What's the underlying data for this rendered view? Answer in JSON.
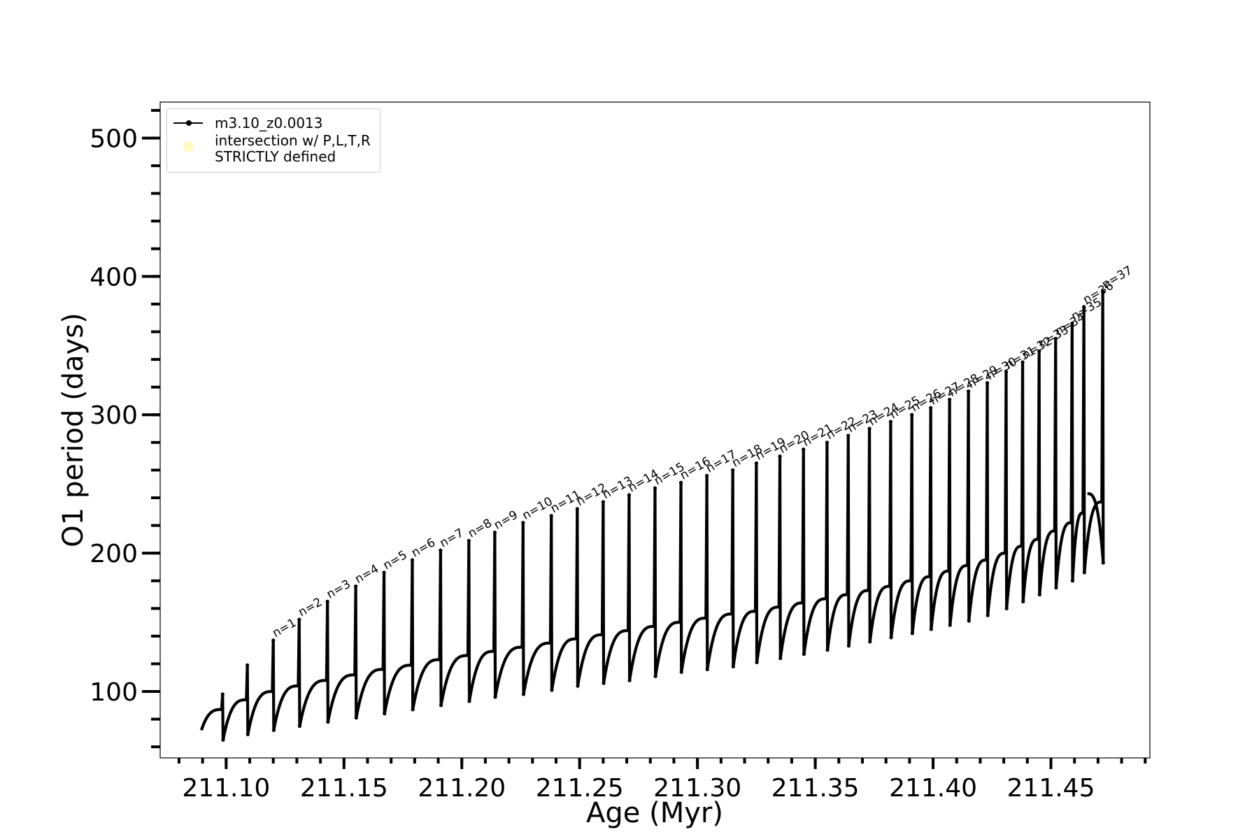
{
  "chart_data": {
    "type": "line",
    "title": "",
    "xlabel": "Age (Myr)",
    "ylabel": "O1 period (days)",
    "xlim": [
      211.072,
      211.492
    ],
    "ylim": [
      52,
      526
    ],
    "x_major_ticks": [
      211.1,
      211.15,
      211.2,
      211.25,
      211.3,
      211.35,
      211.4,
      211.45
    ],
    "x_tick_labels": [
      "211.10",
      "211.15",
      "211.20",
      "211.25",
      "211.30",
      "211.35",
      "211.40",
      "211.45"
    ],
    "x_minor_step": 0.01,
    "y_major_ticks": [
      100,
      200,
      300,
      400,
      500
    ],
    "y_tick_labels": [
      "100",
      "200",
      "300",
      "400",
      "500"
    ],
    "y_minor_step": 20,
    "grid": false,
    "legend_position": "top-left",
    "series": [
      {
        "name": "m3.10_z0.0013",
        "color": "#000000",
        "marker": "dot",
        "start": {
          "x": 211.0895,
          "y": 72
        },
        "end": {
          "x": 211.4655,
          "y": 243
        },
        "pulses": [
          {
            "x": 211.0985,
            "peak": 98,
            "pre": 87,
            "dip": 65
          },
          {
            "x": 211.109,
            "peak": 119,
            "pre": 94,
            "dip": 69
          },
          {
            "x": 211.12,
            "peak": 137,
            "pre": 100,
            "dip": 72
          },
          {
            "x": 211.131,
            "peak": 152,
            "pre": 104,
            "dip": 75
          },
          {
            "x": 211.143,
            "peak": 165,
            "pre": 108,
            "dip": 78
          },
          {
            "x": 211.155,
            "peak": 176,
            "pre": 112,
            "dip": 81
          },
          {
            "x": 211.167,
            "peak": 186,
            "pre": 116,
            "dip": 84
          },
          {
            "x": 211.179,
            "peak": 195,
            "pre": 119,
            "dip": 87
          },
          {
            "x": 211.191,
            "peak": 202,
            "pre": 123,
            "dip": 90
          },
          {
            "x": 211.203,
            "peak": 209,
            "pre": 126,
            "dip": 93
          },
          {
            "x": 211.214,
            "peak": 215,
            "pre": 129,
            "dip": 96
          },
          {
            "x": 211.226,
            "peak": 222,
            "pre": 132,
            "dip": 98
          },
          {
            "x": 211.238,
            "peak": 227,
            "pre": 135,
            "dip": 101
          },
          {
            "x": 211.249,
            "peak": 232,
            "pre": 138,
            "dip": 104
          },
          {
            "x": 211.26,
            "peak": 237,
            "pre": 141,
            "dip": 106
          },
          {
            "x": 211.271,
            "peak": 242,
            "pre": 144,
            "dip": 108
          },
          {
            "x": 211.282,
            "peak": 247,
            "pre": 147,
            "dip": 111
          },
          {
            "x": 211.293,
            "peak": 251,
            "pre": 150,
            "dip": 114
          },
          {
            "x": 211.304,
            "peak": 256,
            "pre": 153,
            "dip": 116
          },
          {
            "x": 211.315,
            "peak": 260,
            "pre": 156,
            "dip": 118
          },
          {
            "x": 211.325,
            "peak": 265,
            "pre": 158,
            "dip": 121
          },
          {
            "x": 211.335,
            "peak": 270,
            "pre": 161,
            "dip": 124
          },
          {
            "x": 211.345,
            "peak": 275,
            "pre": 164,
            "dip": 127
          },
          {
            "x": 211.355,
            "peak": 280,
            "pre": 167,
            "dip": 130
          },
          {
            "x": 211.364,
            "peak": 285,
            "pre": 170,
            "dip": 133
          },
          {
            "x": 211.373,
            "peak": 290,
            "pre": 173,
            "dip": 136
          },
          {
            "x": 211.382,
            "peak": 295,
            "pre": 176,
            "dip": 139
          },
          {
            "x": 211.391,
            "peak": 300,
            "pre": 180,
            "dip": 142
          },
          {
            "x": 211.399,
            "peak": 305,
            "pre": 183,
            "dip": 145
          },
          {
            "x": 211.407,
            "peak": 311,
            "pre": 187,
            "dip": 148
          },
          {
            "x": 211.415,
            "peak": 317,
            "pre": 191,
            "dip": 151
          },
          {
            "x": 211.423,
            "peak": 323,
            "pre": 195,
            "dip": 155
          },
          {
            "x": 211.431,
            "peak": 331,
            "pre": 200,
            "dip": 160
          },
          {
            "x": 211.438,
            "peak": 338,
            "pre": 205,
            "dip": 165
          },
          {
            "x": 211.445,
            "peak": 346,
            "pre": 210,
            "dip": 170
          },
          {
            "x": 211.452,
            "peak": 355,
            "pre": 216,
            "dip": 175
          },
          {
            "x": 211.459,
            "peak": 366,
            "pre": 222,
            "dip": 180
          },
          {
            "x": 211.464,
            "peak": 378,
            "pre": 229,
            "dip": 186
          },
          {
            "x": 211.472,
            "peak": 389,
            "pre": 237,
            "dip": 193
          }
        ]
      },
      {
        "name": "intersection w/ P,L,T,R\nSTRICTLY defined",
        "color": "#fffbc2",
        "marker": "circle",
        "points": []
      }
    ],
    "annotations": [
      {
        "text": "n=1",
        "x": 211.12,
        "y": 137
      },
      {
        "text": "n=2",
        "x": 211.131,
        "y": 152
      },
      {
        "text": "n=3",
        "x": 211.143,
        "y": 165
      },
      {
        "text": "n=4",
        "x": 211.155,
        "y": 176
      },
      {
        "text": "n=5",
        "x": 211.167,
        "y": 186
      },
      {
        "text": "n=6",
        "x": 211.179,
        "y": 195
      },
      {
        "text": "n=7",
        "x": 211.191,
        "y": 202
      },
      {
        "text": "n=8",
        "x": 211.203,
        "y": 209
      },
      {
        "text": "n=9",
        "x": 211.214,
        "y": 215
      },
      {
        "text": "n=10",
        "x": 211.226,
        "y": 222
      },
      {
        "text": "n=11",
        "x": 211.238,
        "y": 227
      },
      {
        "text": "n=12",
        "x": 211.249,
        "y": 232
      },
      {
        "text": "n=13",
        "x": 211.26,
        "y": 237
      },
      {
        "text": "n=14",
        "x": 211.271,
        "y": 242
      },
      {
        "text": "n=15",
        "x": 211.282,
        "y": 247
      },
      {
        "text": "n=16",
        "x": 211.293,
        "y": 251
      },
      {
        "text": "n=17",
        "x": 211.304,
        "y": 256
      },
      {
        "text": "n=18",
        "x": 211.315,
        "y": 260
      },
      {
        "text": "n=19",
        "x": 211.325,
        "y": 265
      },
      {
        "text": "n=20",
        "x": 211.335,
        "y": 270
      },
      {
        "text": "n=21",
        "x": 211.345,
        "y": 275
      },
      {
        "text": "n=22",
        "x": 211.355,
        "y": 280
      },
      {
        "text": "n=23",
        "x": 211.364,
        "y": 285
      },
      {
        "text": "n=24",
        "x": 211.373,
        "y": 290
      },
      {
        "text": "n=25",
        "x": 211.382,
        "y": 295
      },
      {
        "text": "n=26",
        "x": 211.391,
        "y": 300
      },
      {
        "text": "n=27",
        "x": 211.399,
        "y": 305
      },
      {
        "text": "n=28",
        "x": 211.407,
        "y": 311
      },
      {
        "text": "n=29",
        "x": 211.415,
        "y": 317
      },
      {
        "text": "n=30",
        "x": 211.423,
        "y": 323
      },
      {
        "text": "n=31",
        "x": 211.431,
        "y": 331
      },
      {
        "text": "n=32",
        "x": 211.438,
        "y": 338
      },
      {
        "text": "n=33",
        "x": 211.445,
        "y": 346
      },
      {
        "text": "n=34",
        "x": 211.452,
        "y": 355
      },
      {
        "text": "n=35",
        "x": 211.459,
        "y": 366
      },
      {
        "text": "n=36",
        "x": 211.464,
        "y": 378
      },
      {
        "text": "n=37",
        "x": 211.472,
        "y": 389
      }
    ]
  },
  "legend": {
    "items": [
      {
        "label": "m3.10_z0.0013",
        "type": "line"
      },
      {
        "label": "intersection w/ P,L,T,R\nSTRICTLY defined",
        "type": "circle"
      }
    ]
  }
}
